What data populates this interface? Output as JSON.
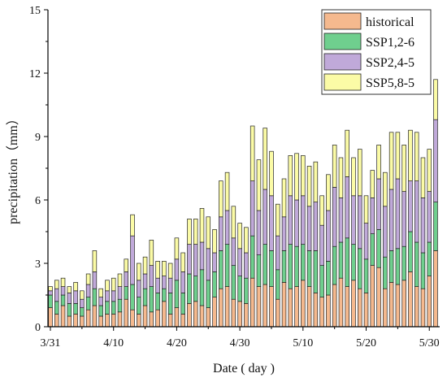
{
  "chart_data": {
    "type": "bar",
    "stacked": true,
    "xlabel": "Date ( day )",
    "ylabel": "precipitation（mm）",
    "ylim": [
      0,
      15
    ],
    "yticks": [
      "0",
      "3",
      "6",
      "9",
      "12",
      "15"
    ],
    "x_tick_labels": [
      "3/31",
      "4/10",
      "4/20",
      "4/30",
      "5/10",
      "5/20",
      "5/30"
    ],
    "x_tick_index": [
      0,
      10,
      20,
      30,
      40,
      50,
      60
    ],
    "dates": [
      "3/31",
      "4/1",
      "4/2",
      "4/3",
      "4/4",
      "4/5",
      "4/6",
      "4/7",
      "4/8",
      "4/9",
      "4/10",
      "4/11",
      "4/12",
      "4/13",
      "4/14",
      "4/15",
      "4/16",
      "4/17",
      "4/18",
      "4/19",
      "4/20",
      "4/21",
      "4/22",
      "4/23",
      "4/24",
      "4/25",
      "4/26",
      "4/27",
      "4/28",
      "4/29",
      "4/30",
      "5/1",
      "5/2",
      "5/3",
      "5/4",
      "5/5",
      "5/6",
      "5/7",
      "5/8",
      "5/9",
      "5/10",
      "5/11",
      "5/12",
      "5/13",
      "5/14",
      "5/15",
      "5/16",
      "5/17",
      "5/18",
      "5/19",
      "5/20",
      "5/21",
      "5/22",
      "5/23",
      "5/24",
      "5/25",
      "5/26",
      "5/27",
      "5/28",
      "5/29",
      "5/30",
      "5/31"
    ],
    "legend_position": "top-right",
    "series": [
      {
        "name": "historical",
        "color": "#f5b98e",
        "values": [
          0.9,
          0.6,
          1.0,
          0.5,
          0.6,
          0.5,
          0.8,
          1.0,
          0.5,
          0.6,
          0.6,
          0.7,
          1.3,
          0.8,
          0.6,
          1.0,
          0.7,
          0.8,
          1.2,
          0.6,
          0.9,
          0.6,
          1.1,
          1.2,
          1.0,
          0.9,
          1.4,
          1.8,
          1.9,
          1.3,
          1.2,
          1.1,
          2.3,
          1.9,
          2.0,
          1.9,
          1.3,
          2.1,
          1.8,
          1.9,
          2.2,
          1.9,
          1.6,
          1.4,
          1.5,
          2.0,
          2.3,
          1.9,
          2.2,
          1.8,
          1.6,
          2.9,
          2.8,
          1.8,
          2.1,
          2.0,
          2.2,
          2.6,
          1.9,
          1.8,
          2.4,
          3.6
        ]
      },
      {
        "name": "SSP1,2-6",
        "color": "#6fcf8e",
        "values": [
          0.6,
          0.6,
          0.5,
          0.6,
          0.5,
          0.4,
          0.6,
          0.8,
          0.5,
          0.6,
          0.6,
          0.6,
          0.6,
          1.2,
          0.8,
          0.8,
          1.2,
          0.8,
          0.6,
          1.0,
          1.3,
          1.0,
          1.4,
          1.2,
          1.7,
          1.3,
          1.2,
          1.8,
          2.0,
          1.6,
          1.2,
          1.2,
          2.0,
          1.5,
          1.9,
          1.7,
          1.4,
          1.5,
          2.1,
          1.9,
          1.7,
          1.7,
          2.0,
          1.5,
          1.6,
          1.8,
          1.7,
          2.3,
          1.7,
          1.9,
          1.6,
          1.5,
          1.8,
          1.5,
          1.5,
          1.7,
          1.6,
          1.9,
          2.1,
          1.7,
          1.6,
          2.3
        ]
      },
      {
        "name": "SSP2,4-5",
        "color": "#c0a9d9",
        "values": [
          0.2,
          0.6,
          0.4,
          0.5,
          0.6,
          0.4,
          0.6,
          0.8,
          0.4,
          0.5,
          0.5,
          0.6,
          0.7,
          2.3,
          0.8,
          0.7,
          1.0,
          0.7,
          0.6,
          0.7,
          1.0,
          1.0,
          1.4,
          1.5,
          1.3,
          1.5,
          0.9,
          1.6,
          1.6,
          1.3,
          1.3,
          1.2,
          2.6,
          2.1,
          2.6,
          2.6,
          1.6,
          1.6,
          2.3,
          2.2,
          2.3,
          2.1,
          2.3,
          1.9,
          2.4,
          2.8,
          2.1,
          2.9,
          2.3,
          2.5,
          1.7,
          1.7,
          2.4,
          2.4,
          2.9,
          3.3,
          2.6,
          2.4,
          2.9,
          2.6,
          2.4,
          3.9
        ]
      },
      {
        "name": "SSP5,8-5",
        "color": "#fbfba6",
        "values": [
          0.2,
          0.4,
          0.4,
          0.3,
          0.4,
          0.4,
          0.5,
          1.0,
          0.4,
          0.5,
          0.6,
          0.6,
          0.6,
          1.0,
          0.8,
          0.8,
          1.2,
          0.8,
          0.7,
          0.7,
          1.0,
          0.9,
          1.2,
          1.2,
          1.6,
          1.5,
          1.1,
          1.7,
          1.8,
          1.5,
          1.2,
          1.2,
          2.6,
          2.4,
          2.9,
          2.1,
          1.5,
          1.8,
          1.9,
          2.2,
          1.9,
          1.9,
          1.9,
          1.4,
          1.7,
          2.0,
          1.9,
          2.2,
          1.8,
          2.2,
          1.3,
          1.3,
          1.6,
          1.6,
          2.7,
          2.2,
          2.2,
          2.4,
          2.3,
          1.9,
          2.0,
          1.9
        ]
      }
    ]
  }
}
